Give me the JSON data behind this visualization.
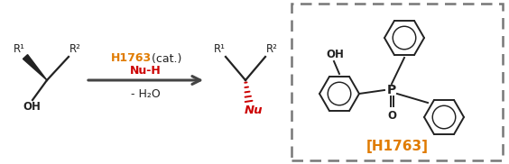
{
  "fig_width": 5.64,
  "fig_height": 1.82,
  "dpi": 100,
  "bg_color": "#ffffff",
  "orange_color": "#E07B00",
  "red_color": "#CC0000",
  "black_color": "#222222",
  "gray_color": "#555555",
  "arrow_above_line1": "H1763",
  "arrow_above_line1_suffix": " (cat.)",
  "arrow_above_line2": "Nu-H",
  "arrow_below_line1": "- H₂O",
  "box_label": "[H1763]",
  "reactant_OH": "OH",
  "reactant_R1": "R¹",
  "reactant_R2": "R²",
  "product_Nu": "Nu",
  "product_R1": "R¹",
  "product_R2": "R²"
}
